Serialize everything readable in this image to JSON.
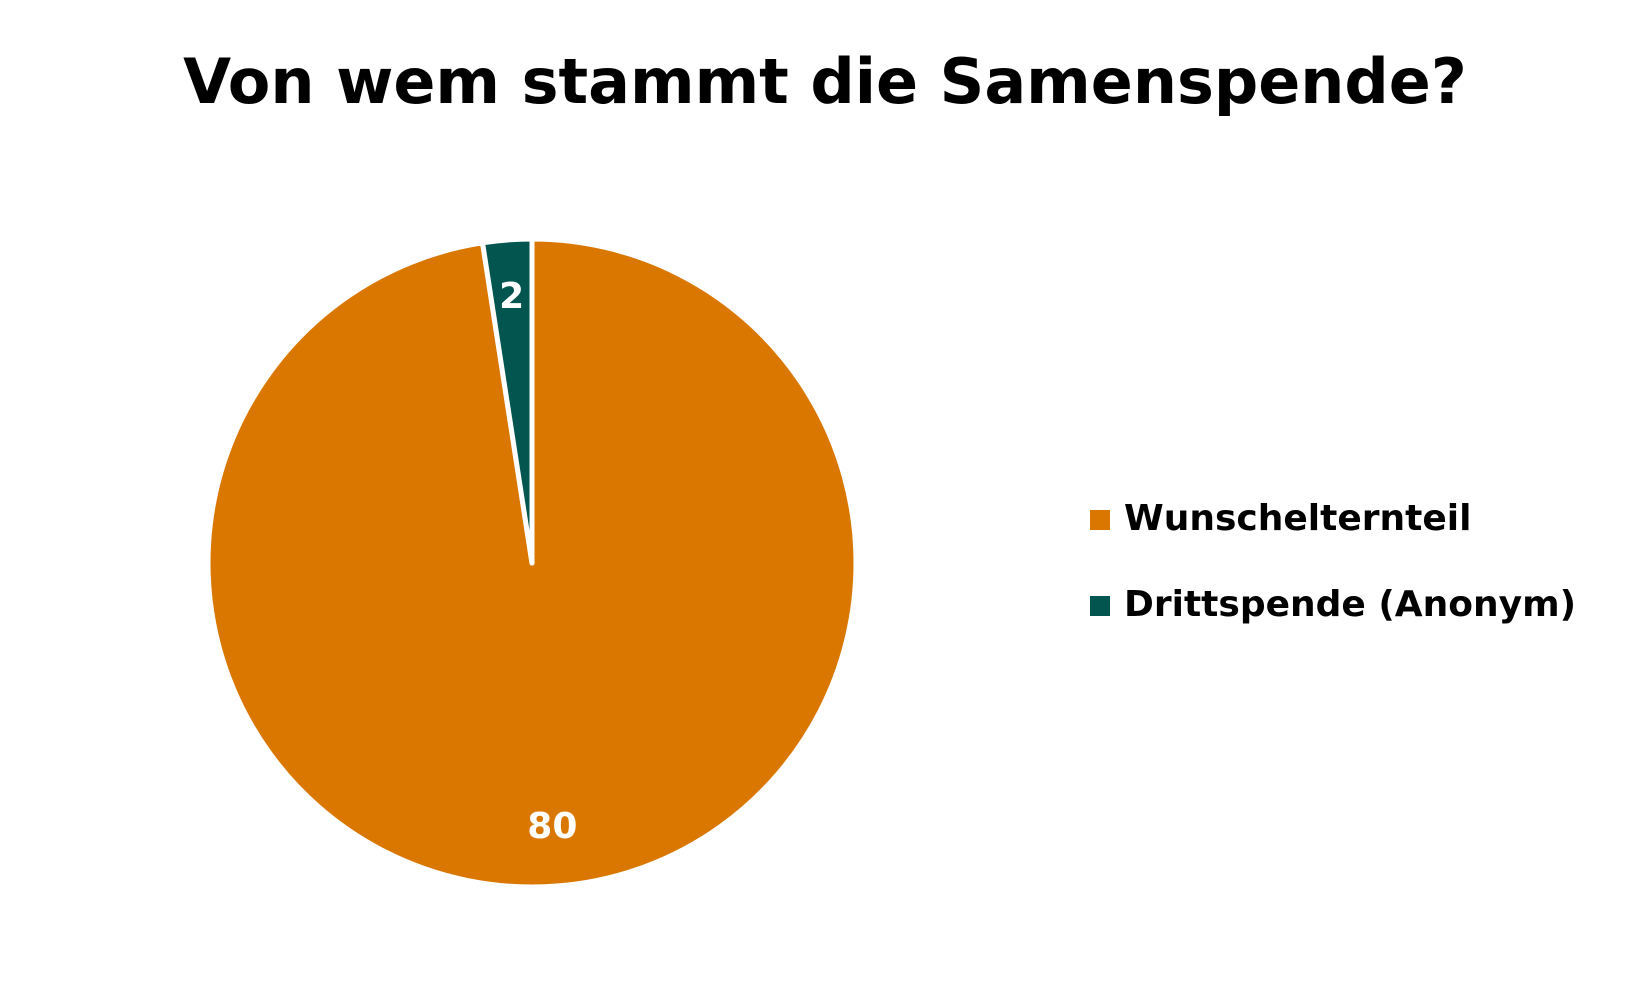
{
  "chart_data": {
    "type": "pie",
    "title": "Von wem stammt die Samenspende?",
    "categories": [
      "Wunschelternteil",
      "Drittspende (Anonym)"
    ],
    "values": [
      80,
      2
    ],
    "colors": [
      "#d97700",
      "#03564f"
    ],
    "legend": "right"
  }
}
